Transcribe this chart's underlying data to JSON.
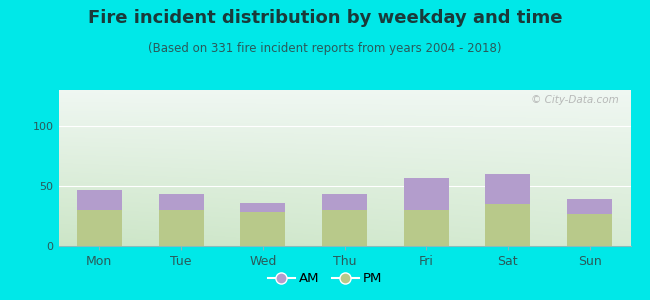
{
  "categories": [
    "Mon",
    "Tue",
    "Wed",
    "Thu",
    "Fri",
    "Sat",
    "Sun"
  ],
  "pm_values": [
    30,
    30,
    28,
    30,
    30,
    35,
    27
  ],
  "am_values": [
    17,
    13,
    8,
    13,
    27,
    25,
    12
  ],
  "am_color": "#b39dcc",
  "pm_color": "#b8c98a",
  "title": "Fire incident distribution by weekday and time",
  "subtitle": "(Based on 331 fire incident reports from years 2004 - 2018)",
  "ylim": [
    0,
    130
  ],
  "yticks": [
    0,
    50,
    100
  ],
  "bg_figure": "#00e8e8",
  "title_color": "#1a3a3a",
  "subtitle_color": "#2a5a5a",
  "title_fontsize": 13,
  "subtitle_fontsize": 8.5,
  "bar_width": 0.55,
  "watermark_text": "© City-Data.com"
}
